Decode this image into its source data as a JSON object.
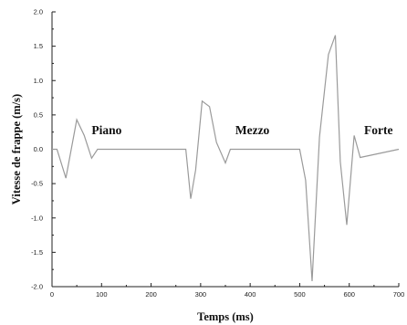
{
  "chart_data": {
    "type": "line",
    "title": "",
    "xlabel": "Temps (ms)",
    "ylabel": "Vitesse de frappe (m/s)",
    "xlim": [
      0,
      700
    ],
    "ylim": [
      -2.0,
      2.0
    ],
    "x_ticks": [
      "0",
      "100",
      "200",
      "300",
      "400",
      "500",
      "600",
      "700"
    ],
    "y_ticks": [
      "2.0",
      "1.5",
      "1.0",
      "0.5",
      "0.0",
      "-0.5",
      "-1.0",
      "-1.5",
      "-2.0"
    ],
    "grid": false,
    "line_color": "#9a9a9a",
    "annotations": [
      {
        "text": "Piano",
        "x": 80,
        "y": 0.22
      },
      {
        "text": "Mezzo",
        "x": 370,
        "y": 0.22
      },
      {
        "text": "Forte",
        "x": 630,
        "y": 0.22
      }
    ],
    "series": [
      {
        "x": [
          0,
          10,
          28,
          50,
          65,
          80,
          92,
          100,
          260,
          270,
          280,
          290,
          303,
          318,
          332,
          350,
          360,
          370,
          490,
          500,
          512,
          525,
          540,
          558,
          572,
          582,
          595,
          610,
          622,
          700
        ],
        "y": [
          0.0,
          0.0,
          -0.42,
          0.43,
          0.2,
          -0.13,
          0.0,
          0.0,
          0.0,
          0.0,
          -0.72,
          -0.3,
          0.7,
          0.62,
          0.1,
          -0.2,
          0.0,
          0.0,
          0.0,
          0.0,
          -0.45,
          -1.92,
          0.18,
          1.38,
          1.66,
          -0.18,
          -1.1,
          0.2,
          -0.12,
          0.0
        ]
      }
    ]
  }
}
